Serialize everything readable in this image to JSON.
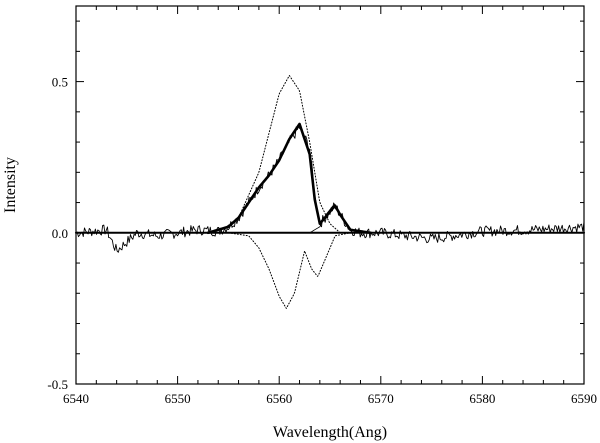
{
  "chart_data": {
    "type": "line",
    "title": "",
    "xlabel": "Wavelength(Ang)",
    "ylabel": "Intensity",
    "xlim": [
      6540,
      6590
    ],
    "ylim": [
      -0.5,
      0.75
    ],
    "grid": false,
    "legend": "none",
    "x_ticks": [
      6540,
      6550,
      6560,
      6570,
      6580,
      6590
    ],
    "x_tick_labels": [
      "6540",
      "6550",
      "6560",
      "6570",
      "6580",
      "6590"
    ],
    "y_ticks": [
      -0.5,
      0.0,
      0.5
    ],
    "y_tick_labels": [
      "-0.5",
      "0.0",
      "0.5"
    ],
    "series": [
      {
        "style": "solid-thin",
        "x": [
          6540,
          6543,
          6544,
          6546,
          6548,
          6550,
          6552,
          6554,
          6555,
          6556,
          6557,
          6558,
          6559,
          6560,
          6561,
          6562,
          6563,
          6563.5,
          6564,
          6564.5,
          6565,
          6565.5,
          6566,
          6567,
          6568,
          6570,
          6575,
          6580,
          6585,
          6590
        ],
        "y": [
          0.0,
          0.01,
          -0.06,
          0.0,
          -0.01,
          0.0,
          0.01,
          0.005,
          0.02,
          0.05,
          0.1,
          0.15,
          0.19,
          0.24,
          0.3,
          0.35,
          0.28,
          0.12,
          0.03,
          0.05,
          0.07,
          0.09,
          0.06,
          0.01,
          0.0,
          0.0,
          -0.02,
          0.005,
          0.01,
          0.02
        ]
      },
      {
        "style": "dotted-emission",
        "x": [
          6554,
          6556,
          6558,
          6559,
          6560,
          6561,
          6562,
          6563,
          6564,
          6565,
          6566,
          6568
        ],
        "y": [
          0.0,
          0.05,
          0.2,
          0.33,
          0.46,
          0.52,
          0.47,
          0.3,
          0.1,
          0.03,
          0.0,
          0.0
        ]
      },
      {
        "style": "dotted-absorption",
        "x": [
          6555,
          6557,
          6558,
          6559,
          6560,
          6560.7,
          6561.5,
          6562.5,
          6563.2,
          6563.8,
          6564.5,
          6565.5,
          6567
        ],
        "y": [
          0.0,
          -0.01,
          -0.05,
          -0.12,
          -0.21,
          -0.25,
          -0.2,
          -0.06,
          -0.12,
          -0.145,
          -0.09,
          -0.01,
          0.0
        ]
      },
      {
        "style": "solid-thin-component",
        "x": [
          6563,
          6564,
          6564.6,
          6565.3,
          6566,
          6567,
          6568
        ],
        "y": [
          0.0,
          0.02,
          0.06,
          0.09,
          0.06,
          0.01,
          0.0
        ]
      },
      {
        "style": "solid-thick-fit",
        "x": [
          6553,
          6555,
          6556,
          6557,
          6558,
          6559,
          6560,
          6561,
          6562,
          6563,
          6563.5,
          6564,
          6564.5,
          6565,
          6565.5,
          6566,
          6567,
          6569
        ],
        "y": [
          0.0,
          0.02,
          0.05,
          0.1,
          0.15,
          0.19,
          0.24,
          0.31,
          0.36,
          0.26,
          0.11,
          0.03,
          0.05,
          0.07,
          0.09,
          0.06,
          0.01,
          0.0
        ]
      },
      {
        "style": "baseline",
        "x": [
          6540,
          6590
        ],
        "y": [
          0.0,
          0.0
        ]
      }
    ]
  }
}
